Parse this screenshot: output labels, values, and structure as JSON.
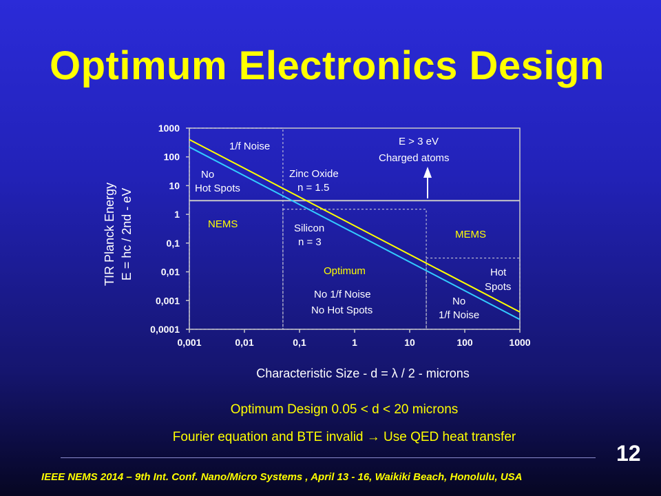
{
  "slide": {
    "title": "Optimum Electronics Design",
    "note_design": "Optimum Design 0.05 < d < 20 microns",
    "note_transfer": "Fourier equation and BTE invalid → Use QED heat transfer",
    "page_number": "12",
    "footer": "IEEE NEMS 2014 – 9th Int. Conf. Nano/Micro Systems , April 13 - 16,  Waikiki Beach, Honolulu, USA"
  },
  "chart_data": {
    "type": "line",
    "title": "",
    "xlabel": "Characteristic Size  - d  =  λ / 2 - microns",
    "ylabel": [
      "TIR Planck Energy",
      "E = hc / 2nd - eV"
    ],
    "x_scale": "log",
    "y_scale": "log",
    "xlim": [
      0.001,
      1000
    ],
    "ylim": [
      0.0001,
      1000
    ],
    "x_ticks": [
      "0,001",
      "0,01",
      "0,1",
      "1",
      "10",
      "100",
      "1000"
    ],
    "y_ticks": [
      "0,0001",
      "0,001",
      "0,01",
      "0,1",
      "1",
      "10",
      "100",
      "1000"
    ],
    "grid": false,
    "series": [
      {
        "color": "#ffff00",
        "x": [
          0.001,
          1000
        ],
        "y": [
          400,
          0.0004
        ]
      },
      {
        "color": "#33ccff",
        "x": [
          0.001,
          1000
        ],
        "y": [
          220,
          0.00022
        ]
      }
    ],
    "threshold_line": {
      "y": 3,
      "color": "#c8c8c8"
    },
    "annotations": {
      "one_over_f": "1/f Noise",
      "no_hot_spots_1": "No",
      "no_hot_spots_2": "Hot Spots",
      "zinc_oxide": "Zinc Oxide",
      "zinc_n": "n = 1.5",
      "e_gt": "E  > 3 eV",
      "charged": "Charged atoms",
      "nems": "NEMS",
      "silicon": "Silicon",
      "silicon_n": "n = 3",
      "mems": "MEMS",
      "optimum": "Optimum",
      "no_1f": "No 1/f Noise",
      "no_hot": "No Hot Spots",
      "hot": "Hot",
      "spots": "Spots",
      "no_b": "No",
      "one_f_noise_b": "1/f Noise"
    },
    "colors": {
      "text": "#ffffff",
      "highlight": "#ffff00",
      "axis": "#c8c8c8"
    }
  }
}
